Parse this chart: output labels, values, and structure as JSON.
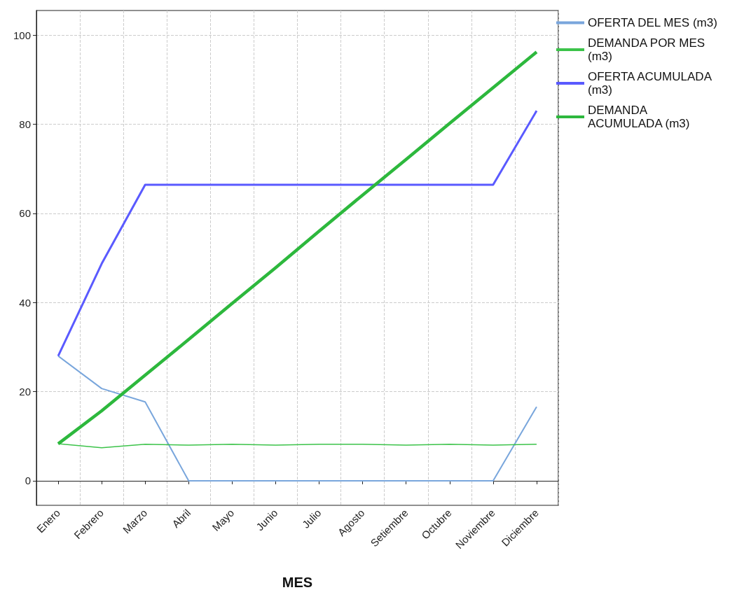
{
  "chart_data": {
    "type": "line",
    "xlabel": "MES",
    "categories": [
      "Enero",
      "Febrero",
      "Marzo",
      "Abril",
      "Mayo",
      "Junio",
      "Julio",
      "Agosto",
      "Setiembre",
      "Octubre",
      "Noviembre",
      "Diciembre"
    ],
    "series": [
      {
        "name": "OFERTA DEL MES (m3)",
        "color": "#79a6dc",
        "values": [
          28,
          20.7,
          17.7,
          0,
          0,
          0,
          0,
          0,
          0,
          0,
          0,
          16.6
        ]
      },
      {
        "name": "DEMANDA POR MES (m3)",
        "color": "#3cc34a",
        "values": [
          8.3,
          7.4,
          8.2,
          8,
          8.2,
          8,
          8.2,
          8.2,
          8,
          8.2,
          8,
          8.2
        ]
      },
      {
        "name": "OFERTA ACUMULADA (m3)",
        "color": "#5a5aff",
        "values": [
          28,
          48.7,
          66.4,
          66.4,
          66.4,
          66.4,
          66.4,
          66.4,
          66.4,
          66.4,
          66.4,
          83
        ]
      },
      {
        "name": "DEMANDA ACUMULADA (m3)",
        "color": "#2db83d",
        "values": [
          8.3,
          15.7,
          23.7,
          31.7,
          39.8,
          47.8,
          56,
          64.1,
          72.1,
          80.2,
          88.2,
          96.2
        ]
      }
    ],
    "ylim": [
      -5.5,
      105.5
    ],
    "yticks": [
      0,
      20,
      40,
      60,
      80,
      100
    ],
    "grid": true,
    "legend": "top right",
    "marker": "none",
    "line_style": "solid"
  }
}
